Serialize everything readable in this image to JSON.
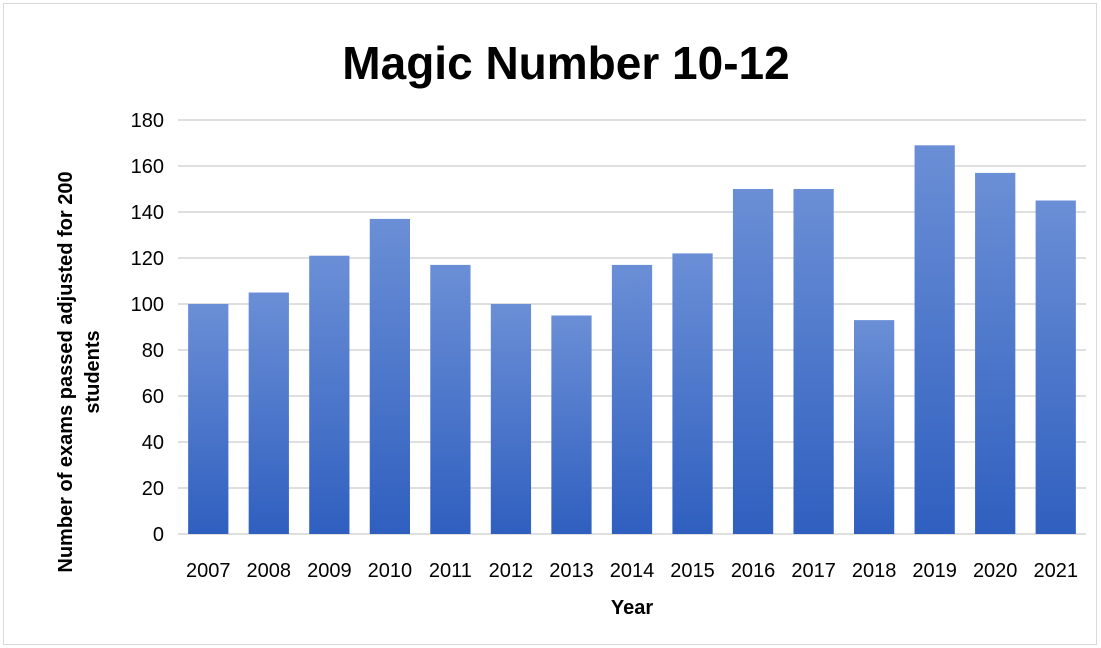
{
  "chart_data": {
    "type": "bar",
    "title": "Magic Number 10-12",
    "xlabel": "Year",
    "ylabel_lines": [
      "Number of exams passed adjusted for 200",
      "students"
    ],
    "categories": [
      "2007",
      "2008",
      "2009",
      "2010",
      "2011",
      "2012",
      "2013",
      "2014",
      "2015",
      "2016",
      "2017",
      "2018",
      "2019",
      "2020",
      "2021"
    ],
    "values": [
      100,
      105,
      121,
      137,
      117,
      100,
      95,
      117,
      122,
      150,
      150,
      93,
      169,
      157,
      145
    ],
    "ylim": [
      0,
      180
    ],
    "yticks": [
      0,
      20,
      40,
      60,
      80,
      100,
      120,
      140,
      160,
      180
    ],
    "grid": true,
    "legend": "none",
    "colors": {
      "bar_top": "#6b8fd6",
      "bar_bottom": "#2f5fbf",
      "grid": "#bfbfbf"
    }
  }
}
